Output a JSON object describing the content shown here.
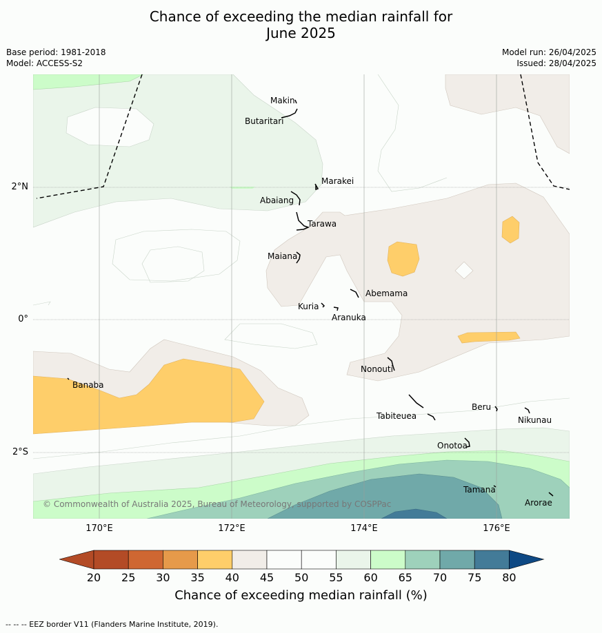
{
  "title": {
    "line1": "Chance of exceeding the median rainfall for",
    "line2": "June 2025"
  },
  "meta": {
    "base_period": "Base period: 1981-2018",
    "model": "Model: ACCESS-S2",
    "model_run": "Model run: 26/04/2025",
    "issued": "Issued: 28/04/2025"
  },
  "map": {
    "lat_labels": [
      "2°N",
      "0°",
      "2°S"
    ],
    "lon_labels": [
      "170°E",
      "172°E",
      "174°E",
      "176°E"
    ],
    "islands": {
      "makin": "Makin",
      "butaritari": "Butaritari",
      "marakei": "Marakei",
      "abaiang": "Abaiang",
      "tarawa": "Tarawa",
      "maiana": "Maiana",
      "abemama": "Abemama",
      "kuria": "Kuria",
      "aranuka": "Aranuka",
      "nonouti": "Nonouti",
      "banaba": "Banaba",
      "beru": "Beru",
      "tabiteuea": "Tabiteuea",
      "nikunau": "Nikunau",
      "onotoa": "Onotoa",
      "tamana": "Tamana",
      "arorae": "Arorae"
    },
    "copyright": "© Commonwealth of Australia 2025, Bureau of Meteorology, supported by COSPPac",
    "colors": {
      "c20_25": "#b34b26",
      "c25_30": "#cf6732",
      "c30_35": "#e69a4a",
      "c35_40": "#fece6a",
      "c40_45": "#f1ede8",
      "c45_55": "#fbfdfb",
      "c55_60": "#eaf5ea",
      "c60_65": "#ccfcc9",
      "c65_70": "#9ed1bb",
      "c70_75": "#70a9a9",
      "c75_80": "#437b98",
      "above80": "#0e4984"
    }
  },
  "colorbar": {
    "ticks": [
      "20",
      "25",
      "30",
      "35",
      "40",
      "45",
      "50",
      "55",
      "60",
      "65",
      "70",
      "75",
      "80"
    ],
    "title": "Chance of exceeding median rainfall (%)"
  },
  "footer": "--  --  -- EEZ border V11 (Flanders Marine Institute, 2019)."
}
